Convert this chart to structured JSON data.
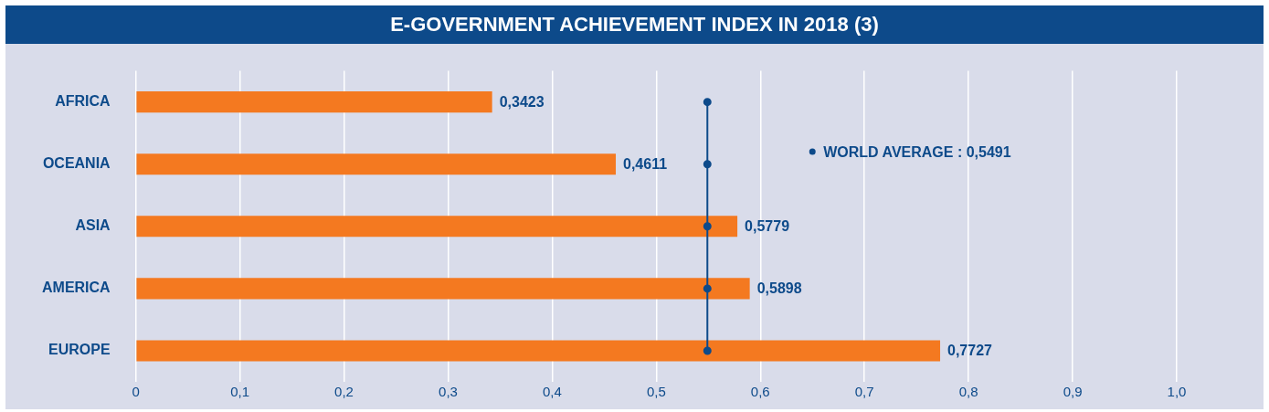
{
  "chart_data": {
    "type": "bar",
    "orientation": "horizontal",
    "title": "E-GOVERNMENT ACHIEVEMENT INDEX IN 2018 (3)",
    "categories": [
      "AFRICA",
      "OCEANIA",
      "ASIA",
      "AMERICA",
      "EUROPE"
    ],
    "series": [
      {
        "color": "#f47920",
        "values": [
          0.3423,
          0.4611,
          0.5779,
          0.5898,
          0.7727
        ],
        "value_labels": [
          "0,3423",
          "0,4611",
          "0,5779",
          "0,5898",
          "0,7727"
        ]
      },
      {
        "type": "line",
        "name": "WORLD AVERAGE : 0,5491",
        "color": "#0d4a8a",
        "values": [
          0.5491,
          0.5491,
          0.5491,
          0.5491,
          0.5491
        ]
      }
    ],
    "marker": "circle",
    "legend": "right",
    "xlim": [
      0,
      1.0
    ],
    "xticks": [
      0,
      {
        "value": 0.1,
        "label": "0,1"
      },
      {
        "value": 0.2,
        "label": "0,2"
      },
      {
        "value": 0.3,
        "label": "0,3"
      },
      {
        "value": 0.4,
        "label": "0,4"
      },
      {
        "value": 0.5,
        "label": "0,5"
      },
      {
        "value": 0.6,
        "label": "0,6"
      },
      {
        "value": 0.7,
        "label": "0,7"
      },
      {
        "value": 0.8,
        "label": "0,8"
      },
      {
        "value": 0.9,
        "label": "0,9"
      },
      {
        "value": 1.0,
        "label": "1,0"
      }
    ],
    "grid": "x"
  }
}
